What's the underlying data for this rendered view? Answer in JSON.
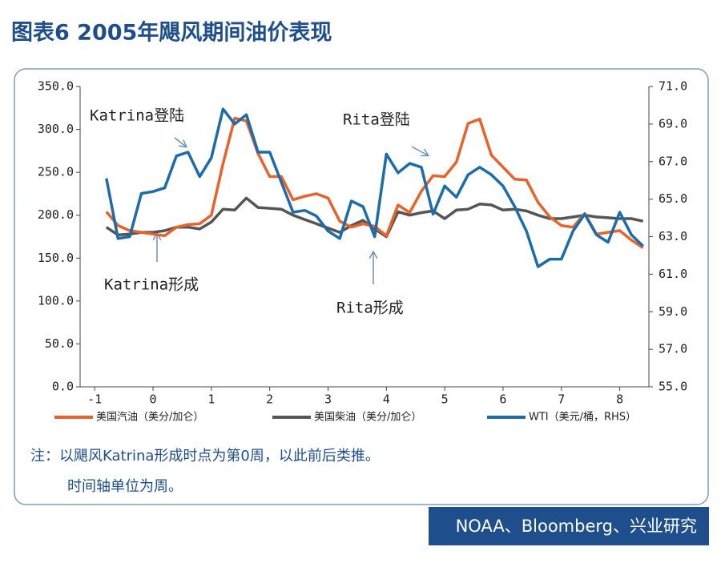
{
  "chart_data": {
    "type": "line",
    "title": "图表6 2005年飓风期间油价表现",
    "source": "NOAA、Bloomberg、兴业研究",
    "notes": [
      "注：以飓风Katrina形成时点为第0周，以此前后类推。",
      "时间轴单位为周。"
    ],
    "annotations": [
      "Katrina登陆",
      "Rita登陆",
      "Katrina形成",
      "Rita形成"
    ],
    "x": [
      -0.8,
      -0.6,
      -0.4,
      -0.2,
      0,
      0.2,
      0.4,
      0.6,
      0.8,
      1.0,
      1.2,
      1.4,
      1.6,
      1.8,
      2.0,
      2.2,
      2.4,
      2.6,
      2.8,
      3.0,
      3.2,
      3.4,
      3.6,
      3.8,
      4.0,
      4.2,
      4.4,
      4.6,
      4.8,
      5.0,
      5.2,
      5.4,
      5.6,
      5.8,
      6.0,
      6.2,
      6.4,
      6.6,
      6.8,
      7.0,
      7.2,
      7.4,
      7.6,
      7.8,
      8.0,
      8.2,
      8.4
    ],
    "xlim": [
      -1.25,
      8.5
    ],
    "xticks": [
      -1,
      0,
      1,
      2,
      3,
      4,
      5,
      6,
      7,
      8
    ],
    "ylim": [
      0,
      350
    ],
    "yticks": [
      {
        "value": 0,
        "label": "0.0"
      },
      {
        "value": 50,
        "label": "50.0"
      },
      {
        "value": 100,
        "label": "100.0"
      },
      {
        "value": 150,
        "label": "150.0"
      },
      {
        "value": 200,
        "label": "200.0"
      },
      {
        "value": 250,
        "label": "250.0"
      },
      {
        "value": 300,
        "label": "300.0"
      },
      {
        "value": 350,
        "label": "350.0"
      }
    ],
    "y2lim": [
      55,
      71
    ],
    "y2ticks": [
      {
        "value": 55,
        "label": "55.0"
      },
      {
        "value": 57,
        "label": "57.0"
      },
      {
        "value": 59,
        "label": "59.0"
      },
      {
        "value": 61,
        "label": "61.0"
      },
      {
        "value": 63,
        "label": "63.0"
      },
      {
        "value": 65,
        "label": "65.0"
      },
      {
        "value": 67,
        "label": "67.0"
      },
      {
        "value": 69,
        "label": "69.0"
      },
      {
        "value": 71,
        "label": "71.0"
      }
    ],
    "series": [
      {
        "name": "美国汽油（美分/加仑）",
        "color": "#e8632b",
        "values": [
          204,
          188,
          182,
          180,
          178,
          176,
          186,
          189,
          190,
          200,
          260,
          313,
          310,
          272,
          245,
          245,
          218,
          222,
          225,
          220,
          193,
          186,
          190,
          187,
          176,
          212,
          203,
          228,
          246,
          245,
          262,
          307,
          312,
          270,
          256,
          242,
          241,
          215,
          198,
          188,
          186,
          202,
          178,
          180,
          182,
          171,
          162
        ]
      },
      {
        "name": "美国柴油（美分/加仑）",
        "color": "#555555",
        "values": [
          186,
          177,
          178,
          180,
          180,
          182,
          186,
          186,
          184,
          192,
          207,
          206,
          220,
          209,
          208,
          207,
          200,
          195,
          190,
          185,
          180,
          188,
          194,
          184,
          175,
          204,
          200,
          203,
          205,
          196,
          206,
          207,
          213,
          212,
          206,
          207,
          205,
          200,
          196,
          196,
          198,
          200,
          198,
          197,
          196,
          196,
          193
        ]
      },
      {
        "name": "WTI（美元/桶，RHS）",
        "color": "#1b6ca8",
        "axis": "y2",
        "values": [
          66.1,
          62.9,
          63.0,
          65.3,
          65.4,
          65.6,
          67.3,
          67.5,
          66.2,
          67.2,
          69.8,
          69.0,
          69.5,
          67.5,
          67.5,
          65.9,
          64.3,
          64.4,
          64.1,
          63.3,
          62.9,
          64.9,
          64.6,
          63.0,
          67.4,
          66.4,
          66.9,
          66.7,
          64.2,
          65.7,
          65.1,
          66.3,
          66.7,
          66.3,
          65.7,
          64.6,
          63.3,
          61.4,
          61.8,
          61.8,
          63.3,
          64.2,
          63.1,
          62.7,
          64.3,
          63.1,
          62.5
        ]
      }
    ]
  }
}
